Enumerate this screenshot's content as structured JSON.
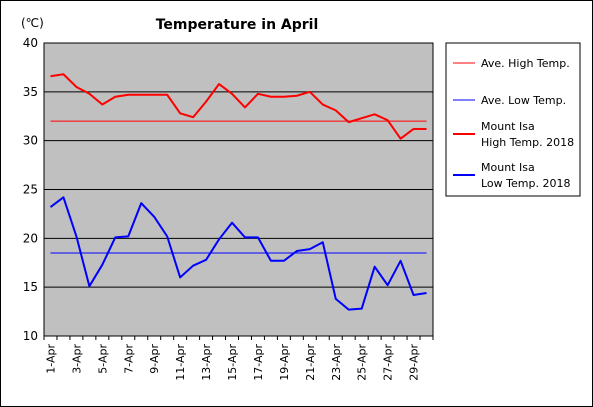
{
  "chart_data": {
    "type": "line",
    "title": "Temperature in April",
    "unit_label": "(℃)",
    "ylim": [
      10,
      40
    ],
    "yticks": [
      10,
      15,
      20,
      25,
      30,
      35,
      40
    ],
    "grid": true,
    "legend_position": "right",
    "x_tick_labels": [
      "1-Apr",
      "3-Apr",
      "5-Apr",
      "7-Apr",
      "9-Apr",
      "11-Apr",
      "13-Apr",
      "15-Apr",
      "17-Apr",
      "19-Apr",
      "21-Apr",
      "23-Apr",
      "25-Apr",
      "27-Apr",
      "29-Apr"
    ],
    "x": [
      "1-Apr",
      "2-Apr",
      "3-Apr",
      "4-Apr",
      "5-Apr",
      "6-Apr",
      "7-Apr",
      "8-Apr",
      "9-Apr",
      "10-Apr",
      "11-Apr",
      "12-Apr",
      "13-Apr",
      "14-Apr",
      "15-Apr",
      "16-Apr",
      "17-Apr",
      "18-Apr",
      "19-Apr",
      "20-Apr",
      "21-Apr",
      "22-Apr",
      "23-Apr",
      "24-Apr",
      "25-Apr",
      "26-Apr",
      "27-Apr",
      "28-Apr",
      "29-Apr",
      "30-Apr"
    ],
    "series": [
      {
        "name": "Ave. High Temp.",
        "color": "#ff0000",
        "width": 1,
        "values": [
          32,
          32,
          32,
          32,
          32,
          32,
          32,
          32,
          32,
          32,
          32,
          32,
          32,
          32,
          32,
          32,
          32,
          32,
          32,
          32,
          32,
          32,
          32,
          32,
          32,
          32,
          32,
          32,
          32,
          32
        ]
      },
      {
        "name": "Ave. Low Temp.",
        "color": "#0000ff",
        "width": 1,
        "values": [
          18.5,
          18.5,
          18.5,
          18.5,
          18.5,
          18.5,
          18.5,
          18.5,
          18.5,
          18.5,
          18.5,
          18.5,
          18.5,
          18.5,
          18.5,
          18.5,
          18.5,
          18.5,
          18.5,
          18.5,
          18.5,
          18.5,
          18.5,
          18.5,
          18.5,
          18.5,
          18.5,
          18.5,
          18.5,
          18.5
        ]
      },
      {
        "name": "Mount Isa\nHigh Temp. 2018",
        "color": "#ff0000",
        "width": 2,
        "values": [
          36.6,
          36.8,
          35.5,
          34.8,
          33.7,
          34.5,
          34.7,
          34.7,
          34.7,
          34.7,
          32.8,
          32.4,
          34.0,
          35.8,
          34.8,
          33.4,
          34.8,
          34.5,
          34.5,
          34.6,
          35.0,
          33.7,
          33.1,
          31.9,
          32.3,
          32.7,
          32.1,
          30.2,
          31.2,
          31.2
        ]
      },
      {
        "name": "Mount Isa\nLow Temp. 2018",
        "color": "#0000ff",
        "width": 2,
        "values": [
          23.2,
          24.2,
          20.2,
          15.1,
          17.3,
          20.1,
          20.2,
          23.6,
          22.2,
          20.2,
          16.0,
          17.2,
          17.8,
          19.9,
          21.6,
          20.1,
          20.1,
          17.7,
          17.7,
          18.7,
          18.9,
          19.6,
          13.8,
          12.7,
          12.8,
          17.1,
          15.2,
          17.7,
          14.2,
          14.4
        ]
      }
    ]
  }
}
